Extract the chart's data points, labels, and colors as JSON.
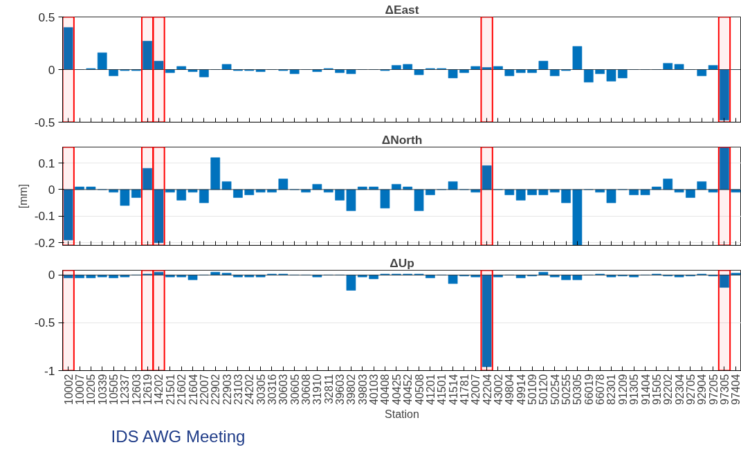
{
  "chart_data": [
    {
      "type": "bar",
      "title": "ΔEast",
      "color": "#0072bd",
      "categories": [
        "10002",
        "10007",
        "10205",
        "10339",
        "10505",
        "12337",
        "12603",
        "12619",
        "14202",
        "21501",
        "21602",
        "21604",
        "22007",
        "22902",
        "22903",
        "23103",
        "24202",
        "30305",
        "30316",
        "30603",
        "30605",
        "30608",
        "31910",
        "32811",
        "39603",
        "39802",
        "39803",
        "40103",
        "40408",
        "40425",
        "40452",
        "40508",
        "41201",
        "41501",
        "41514",
        "41781",
        "42007",
        "42204",
        "43002",
        "49804",
        "49914",
        "50109",
        "50120",
        "50254",
        "50255",
        "50305",
        "66019",
        "66078",
        "82301",
        "91209",
        "91305",
        "91404",
        "91505",
        "92202",
        "92304",
        "92705",
        "92904",
        "97205",
        "97305",
        "97404"
      ],
      "values": [
        0.4,
        0,
        0.01,
        0.16,
        -0.06,
        -0.01,
        -0.01,
        0.27,
        0.08,
        -0.03,
        0.03,
        -0.02,
        -0.07,
        0,
        0.05,
        -0.01,
        -0.01,
        -0.02,
        0,
        -0.01,
        -0.04,
        0,
        -0.02,
        0.01,
        -0.03,
        -0.04,
        0,
        0,
        -0.01,
        0.04,
        0.05,
        -0.05,
        0.01,
        0.01,
        -0.08,
        -0.03,
        0.03,
        0.02,
        0.03,
        -0.06,
        -0.03,
        -0.03,
        0.08,
        -0.06,
        -0.01,
        0.22,
        -0.12,
        -0.04,
        -0.11,
        -0.08,
        0,
        0,
        0,
        0.06,
        0.05,
        0,
        -0.06,
        0.04,
        -0.48,
        0
      ],
      "ylim": [
        -0.5,
        0.5
      ],
      "yticks": [
        -0.5,
        0,
        0.5
      ],
      "tick_labels": "y",
      "bands": [
        {
          "axis": "x",
          "from": "10002",
          "to": "10002",
          "color": "#ff0000"
        },
        {
          "axis": "x",
          "from": "12619",
          "to": "12619",
          "color": "#ff0000"
        },
        {
          "axis": "x",
          "from": "14202",
          "to": "14202",
          "color": "#ff0000"
        },
        {
          "axis": "x",
          "from": "42204",
          "to": "42204",
          "color": "#ff0000"
        },
        {
          "axis": "x",
          "from": "97305",
          "to": "97305",
          "color": "#ff0000"
        }
      ]
    },
    {
      "type": "bar",
      "title": "ΔNorth",
      "ylabel": "[mm]",
      "color": "#0072bd",
      "categories": [
        "10002",
        "10007",
        "10205",
        "10339",
        "10505",
        "12337",
        "12603",
        "12619",
        "14202",
        "21501",
        "21602",
        "21604",
        "22007",
        "22902",
        "22903",
        "23103",
        "24202",
        "30305",
        "30316",
        "30603",
        "30605",
        "30608",
        "31910",
        "32811",
        "39603",
        "39802",
        "39803",
        "40103",
        "40408",
        "40425",
        "40452",
        "40508",
        "41201",
        "41501",
        "41514",
        "41781",
        "42007",
        "42204",
        "43002",
        "49804",
        "49914",
        "50109",
        "50120",
        "50254",
        "50255",
        "50305",
        "66019",
        "66078",
        "82301",
        "91209",
        "91305",
        "91404",
        "91505",
        "92202",
        "92304",
        "92705",
        "92904",
        "97205",
        "97305",
        "97404"
      ],
      "values": [
        -0.19,
        0.01,
        0.01,
        0,
        -0.01,
        -0.06,
        -0.03,
        0.08,
        -0.2,
        -0.01,
        -0.04,
        -0.01,
        -0.05,
        0.12,
        0.03,
        -0.03,
        -0.02,
        -0.01,
        -0.01,
        0.04,
        0,
        -0.01,
        0.02,
        -0.01,
        -0.04,
        -0.08,
        0.01,
        0.01,
        -0.07,
        0.02,
        0.01,
        -0.08,
        -0.02,
        0,
        0.03,
        0,
        -0.01,
        0.09,
        0,
        -0.02,
        -0.04,
        -0.02,
        -0.02,
        -0.01,
        -0.05,
        -0.21,
        0,
        -0.01,
        -0.05,
        0,
        -0.02,
        -0.02,
        0.01,
        0.04,
        -0.01,
        -0.03,
        0.03,
        -0.01,
        0.16,
        -0.01
      ],
      "ylim": [
        -0.21,
        0.16
      ],
      "yticks": [
        -0.2,
        -0.1,
        0,
        0.1
      ],
      "grid": "y",
      "tick_labels": "y",
      "bands": [
        {
          "axis": "x",
          "from": "10002",
          "to": "10002",
          "color": "#ff0000"
        },
        {
          "axis": "x",
          "from": "12619",
          "to": "12619",
          "color": "#ff0000"
        },
        {
          "axis": "x",
          "from": "14202",
          "to": "14202",
          "color": "#ff0000"
        },
        {
          "axis": "x",
          "from": "42204",
          "to": "42204",
          "color": "#ff0000"
        },
        {
          "axis": "x",
          "from": "97305",
          "to": "97305",
          "color": "#ff0000"
        }
      ]
    },
    {
      "type": "bar",
      "title": "ΔUp",
      "xlabel": "Station",
      "color": "#0072bd",
      "categories": [
        "10002",
        "10007",
        "10205",
        "10339",
        "10505",
        "12337",
        "12603",
        "12619",
        "14202",
        "21501",
        "21602",
        "21604",
        "22007",
        "22902",
        "22903",
        "23103",
        "24202",
        "30305",
        "30316",
        "30603",
        "30605",
        "30608",
        "31910",
        "32811",
        "39603",
        "39802",
        "39803",
        "40103",
        "40408",
        "40425",
        "40452",
        "40508",
        "41201",
        "41501",
        "41514",
        "41781",
        "42007",
        "42204",
        "43002",
        "49804",
        "49914",
        "50109",
        "50120",
        "50254",
        "50255",
        "50305",
        "66019",
        "66078",
        "82301",
        "91209",
        "91305",
        "91404",
        "91505",
        "92202",
        "92304",
        "92705",
        "92904",
        "97205",
        "97305",
        "97404"
      ],
      "values": [
        -0.03,
        -0.03,
        -0.03,
        -0.02,
        -0.03,
        -0.02,
        0,
        0.01,
        0.03,
        -0.02,
        -0.02,
        -0.05,
        0,
        0.03,
        0.02,
        -0.02,
        -0.02,
        -0.02,
        0.01,
        0.01,
        0,
        0,
        -0.02,
        0,
        0,
        -0.16,
        -0.02,
        -0.04,
        0.01,
        0.01,
        0.01,
        0.01,
        -0.03,
        0,
        -0.09,
        -0.01,
        -0.02,
        -0.96,
        -0.02,
        0,
        -0.03,
        -0.01,
        0.03,
        -0.02,
        -0.05,
        -0.05,
        0,
        0.01,
        -0.02,
        -0.01,
        -0.02,
        0,
        0.01,
        -0.01,
        -0.02,
        -0.01,
        0.01,
        -0.01,
        -0.13,
        0.02
      ],
      "ylim": [
        -1,
        0.05
      ],
      "yticks": [
        -1,
        -0.5,
        0
      ],
      "grid": "y",
      "annotations": [
        "IDS AWG Meeting"
      ],
      "bands": [
        {
          "axis": "x",
          "from": "10002",
          "to": "10002",
          "color": "#ff0000"
        },
        {
          "axis": "x",
          "from": "12619",
          "to": "12619",
          "color": "#ff0000"
        },
        {
          "axis": "x",
          "from": "14202",
          "to": "14202",
          "color": "#ff0000"
        },
        {
          "axis": "x",
          "from": "42204",
          "to": "42204",
          "color": "#ff0000"
        },
        {
          "axis": "x",
          "from": "97305",
          "to": "97305",
          "color": "#ff0000"
        }
      ]
    }
  ]
}
